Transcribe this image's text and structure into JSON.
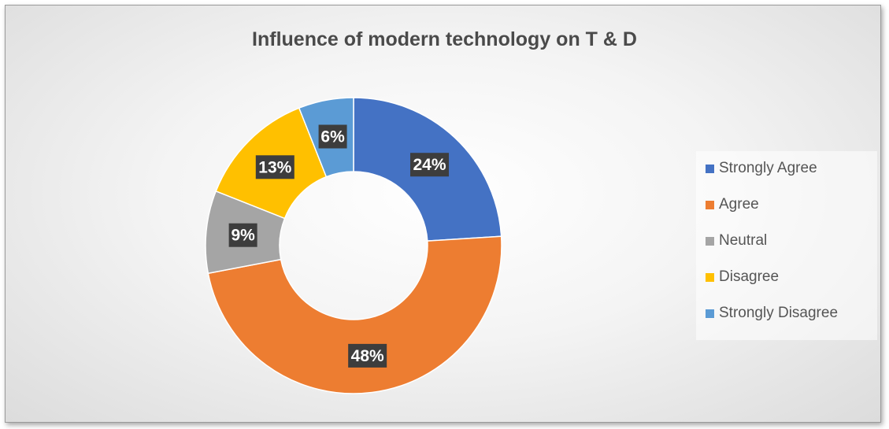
{
  "chart_data": {
    "type": "pie",
    "variant": "doughnut",
    "title": "Influence of modern technology on T & D",
    "categories": [
      "Strongly Agree",
      "Agree",
      "Neutral",
      "Disagree",
      "Strongly Disagree"
    ],
    "values": [
      24,
      48,
      9,
      13,
      6
    ],
    "labels": [
      "24%",
      "48%",
      "9%",
      "13%",
      "6%"
    ],
    "colors": [
      "#4472C4",
      "#ED7D31",
      "#A5A5A5",
      "#FFC000",
      "#5B9BD5"
    ],
    "legend_position": "right"
  }
}
